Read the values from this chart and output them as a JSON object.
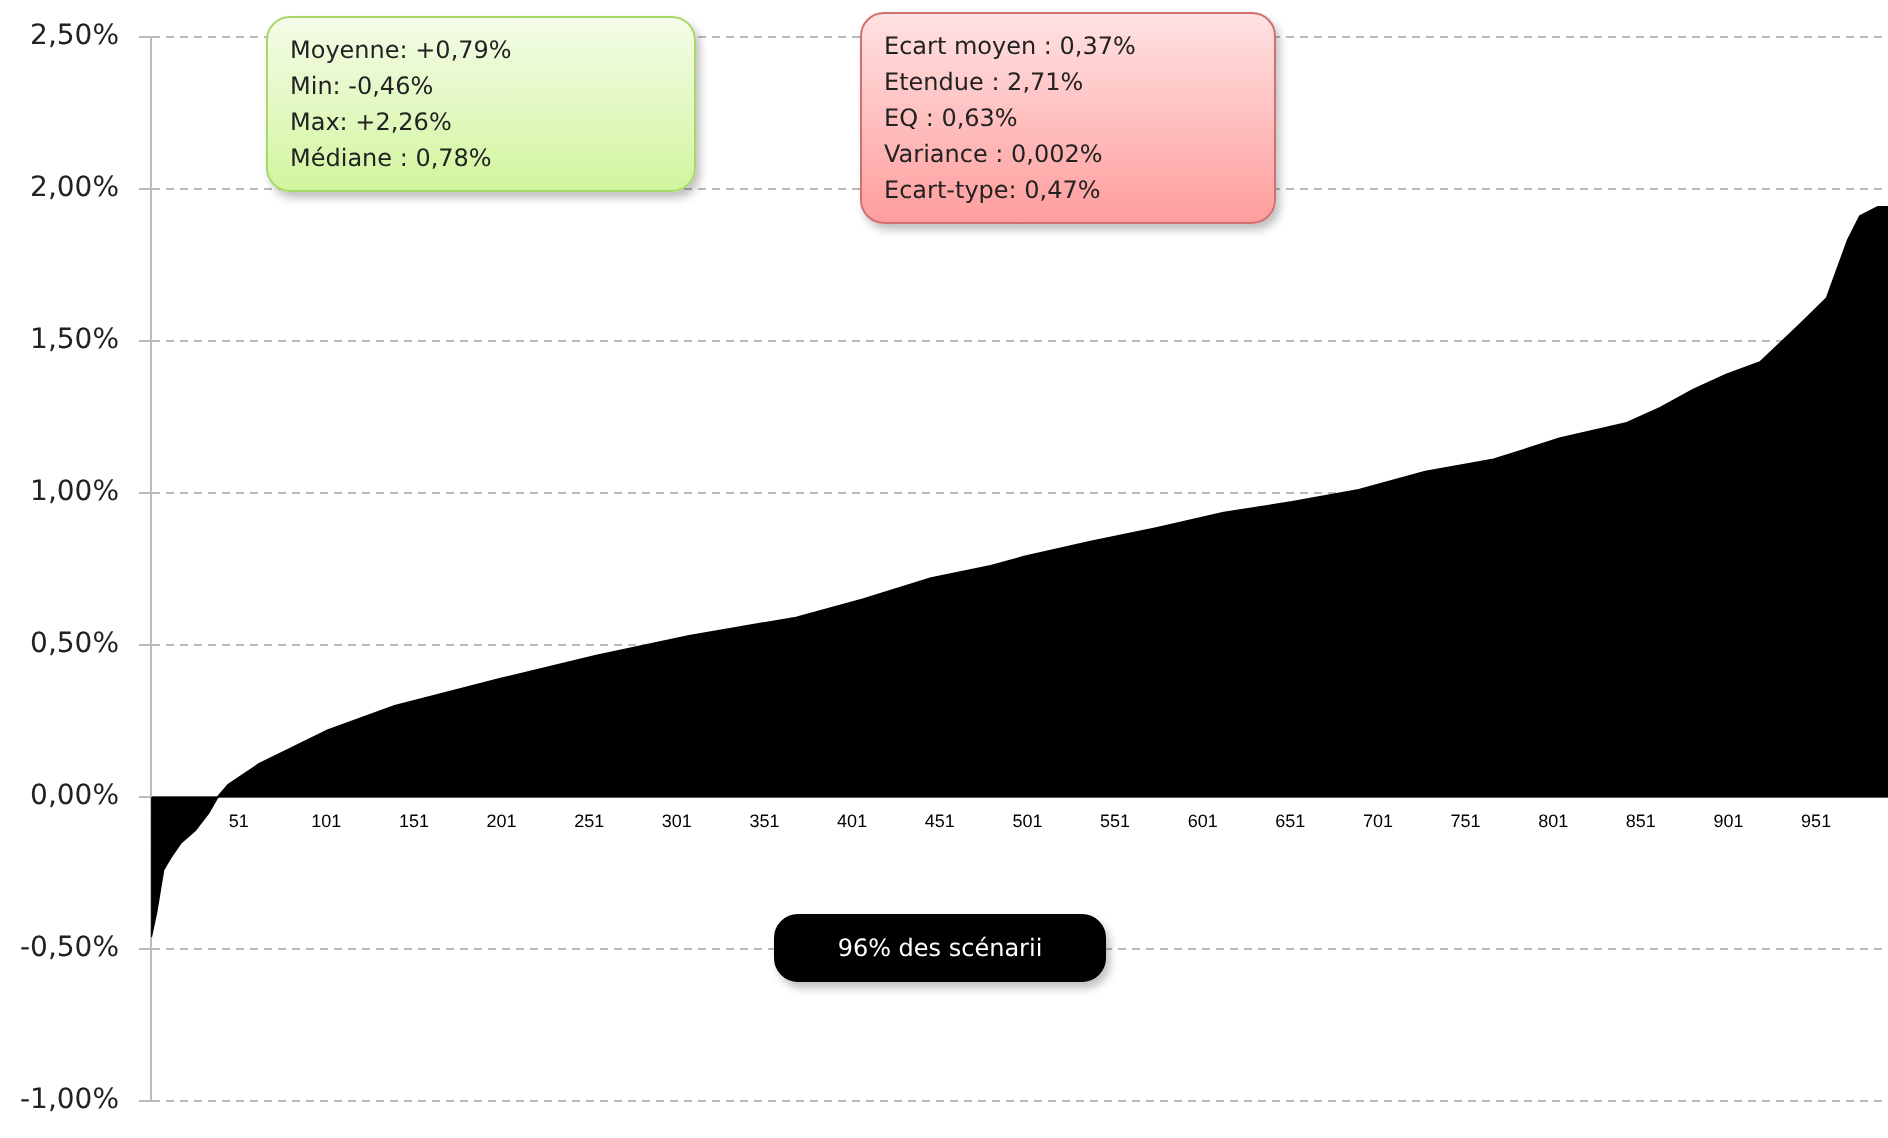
{
  "chart_data": {
    "type": "area",
    "x": [
      1,
      4,
      8,
      12,
      18,
      26,
      34,
      39,
      45,
      63,
      102,
      140,
      201,
      255,
      308,
      369,
      407,
      446,
      480,
      499,
      537,
      575,
      613,
      652,
      690,
      728,
      767,
      805,
      843,
      862,
      881,
      900,
      919,
      930,
      941,
      957,
      969,
      976,
      986,
      992
    ],
    "series": [
      {
        "color": "#000000",
        "values": [
          -0.46,
          -0.38,
          -0.24,
          -0.2,
          -0.15,
          -0.11,
          -0.05,
          0.0,
          0.04,
          0.11,
          0.22,
          0.3,
          0.39,
          0.465,
          0.53,
          0.59,
          0.65,
          0.72,
          0.76,
          0.79,
          0.84,
          0.885,
          0.935,
          0.97,
          1.01,
          1.07,
          1.11,
          1.18,
          1.23,
          1.28,
          1.34,
          1.39,
          1.43,
          1.49,
          1.55,
          1.64,
          1.83,
          1.91,
          1.94,
          1.94
        ]
      }
    ],
    "xlim": [
      1,
      992
    ],
    "xticks": [
      51,
      101,
      151,
      201,
      251,
      301,
      351,
      401,
      451,
      501,
      551,
      601,
      651,
      701,
      751,
      801,
      851,
      901,
      951
    ],
    "ylim": [
      -1,
      2.5
    ],
    "yticks": [
      {
        "value": -1,
        "label": "-1,00%"
      },
      {
        "value": -0.5,
        "label": "-0,50%"
      },
      {
        "value": 0,
        "label": "0,00%"
      },
      {
        "value": 0.5,
        "label": "0,50%"
      },
      {
        "value": 1,
        "label": "1,00%"
      },
      {
        "value": 1.5,
        "label": "1,50%"
      },
      {
        "value": 2,
        "label": "2,00%"
      },
      {
        "value": 2.5,
        "label": "2,50%"
      }
    ],
    "grid": "y",
    "legend": false,
    "marker": "none",
    "line_style": "solid",
    "annotations": [
      "Moyenne:  +0,79%\nMin:  -0,46%\nMax:  +2,26%\nMédiane :  0,78%",
      "Ecart moyen : 0,37%\nEtendue :  2,71%\nEQ : 0,63%\nVariance : 0,002%\nEcart-type:  0,47%",
      "96% des scénarii"
    ]
  }
}
